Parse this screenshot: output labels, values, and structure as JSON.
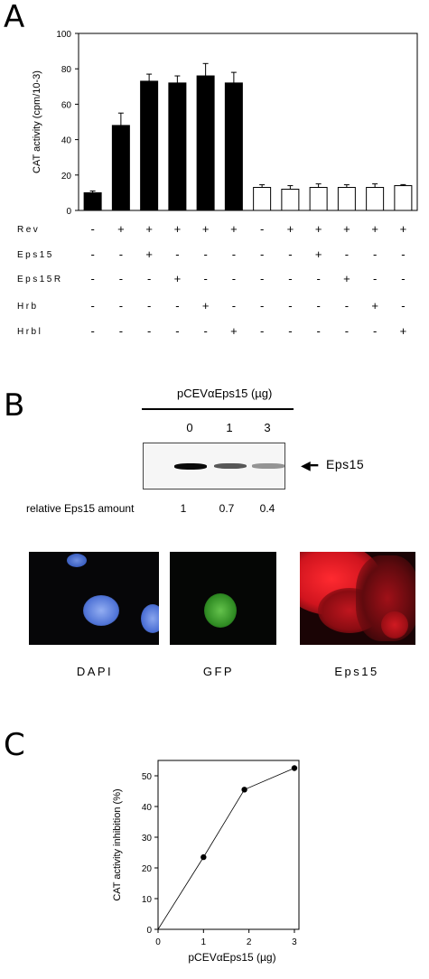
{
  "panel_letters": {
    "a": "A",
    "b": "B",
    "c": "C"
  },
  "chart_data": [
    {
      "type": "bar",
      "panel": "A",
      "ylabel": "CAT activity (cpm/10-3)",
      "ylim": [
        0,
        100
      ],
      "yticks": [
        0,
        20,
        40,
        60,
        80,
        100
      ],
      "series": [
        {
          "name": "",
          "fill": "#000000",
          "values": [
            10,
            48,
            73,
            72,
            76,
            72
          ],
          "errors": [
            1,
            7,
            4,
            4,
            7,
            6
          ]
        },
        {
          "name": "",
          "fill": "#ffffff",
          "values": [
            13,
            12,
            13,
            13,
            13,
            14
          ],
          "errors": [
            1.5,
            2,
            2,
            1.5,
            2,
            0.6
          ]
        }
      ],
      "treatment_rows": [
        {
          "label": "Rev",
          "signs": [
            "-",
            "+",
            "+",
            "+",
            "+",
            "+",
            "-",
            "+",
            "+",
            "+",
            "+",
            "+"
          ]
        },
        {
          "label": "Eps15",
          "signs": [
            "-",
            "-",
            "+",
            "-",
            "-",
            "-",
            "-",
            "-",
            "+",
            "-",
            "-",
            "-"
          ]
        },
        {
          "label": "Eps15R",
          "signs": [
            "-",
            "-",
            "-",
            "+",
            "-",
            "-",
            "-",
            "-",
            "-",
            "+",
            "-",
            "-"
          ]
        },
        {
          "label": "Hrb",
          "signs": [
            "-",
            "-",
            "-",
            "-",
            "+",
            "-",
            "-",
            "-",
            "-",
            "-",
            "+",
            "-"
          ]
        },
        {
          "label": "Hrbl",
          "signs": [
            "-",
            "-",
            "-",
            "-",
            "-",
            "+",
            "-",
            "-",
            "-",
            "-",
            "-",
            "+"
          ]
        }
      ]
    },
    {
      "type": "scatter",
      "panel": "C",
      "xlabel": "pCEVαEps15 (µg)",
      "ylabel": "CAT activity inhibition (%)",
      "xlim": [
        0,
        3.1
      ],
      "ylim": [
        0,
        55
      ],
      "xticks": [
        0,
        1,
        2,
        3
      ],
      "yticks": [
        0,
        10,
        20,
        30,
        40,
        50
      ],
      "points": [
        {
          "x": 0,
          "y": 0
        },
        {
          "x": 1,
          "y": 23.5
        },
        {
          "x": 1.9,
          "y": 45.5
        },
        {
          "x": 3,
          "y": 52.5
        }
      ],
      "connected": true
    }
  ],
  "western": {
    "header": "pCEVαEps15 (µg)",
    "doses": [
      "0",
      "1",
      "3"
    ],
    "arrow_label": "Eps15",
    "amount_label": "relative Eps15 amount",
    "amounts": [
      "1",
      "0.7",
      "0.4"
    ],
    "band_intensity": [
      1,
      0.7,
      0.4
    ]
  },
  "micrographs": [
    {
      "label": "DAPI",
      "color": "#4a78d8"
    },
    {
      "label": "GFP",
      "color": "#2f8a24"
    },
    {
      "label": "Eps15",
      "color": "#e8222a"
    }
  ]
}
